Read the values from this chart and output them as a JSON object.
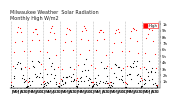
{
  "title": "Milwaukee Weather  Solar Radiation",
  "subtitle": "Monthly High W/m2",
  "background_color": "#ffffff",
  "plot_bg_color": "#ffffff",
  "ylim": [
    0,
    1050
  ],
  "xlim": [
    -1,
    109
  ],
  "ytick_vals": [
    100,
    200,
    300,
    400,
    500,
    600,
    700,
    800,
    900,
    1000
  ],
  "ytick_labels": [
    "1h",
    "2h",
    "3h",
    "4h",
    "5h",
    "6h",
    "7h",
    "8h",
    "9h",
    "1k"
  ],
  "num_years": 9,
  "color_high": "#ff0000",
  "color_low": "#000000",
  "color_mid": "#cc0000",
  "legend_label": "High",
  "legend_color": "#ff0000",
  "vline_color": "#bbbbbb",
  "vline_style": "--",
  "title_fontsize": 3.5,
  "tick_fontsize": 2.8
}
